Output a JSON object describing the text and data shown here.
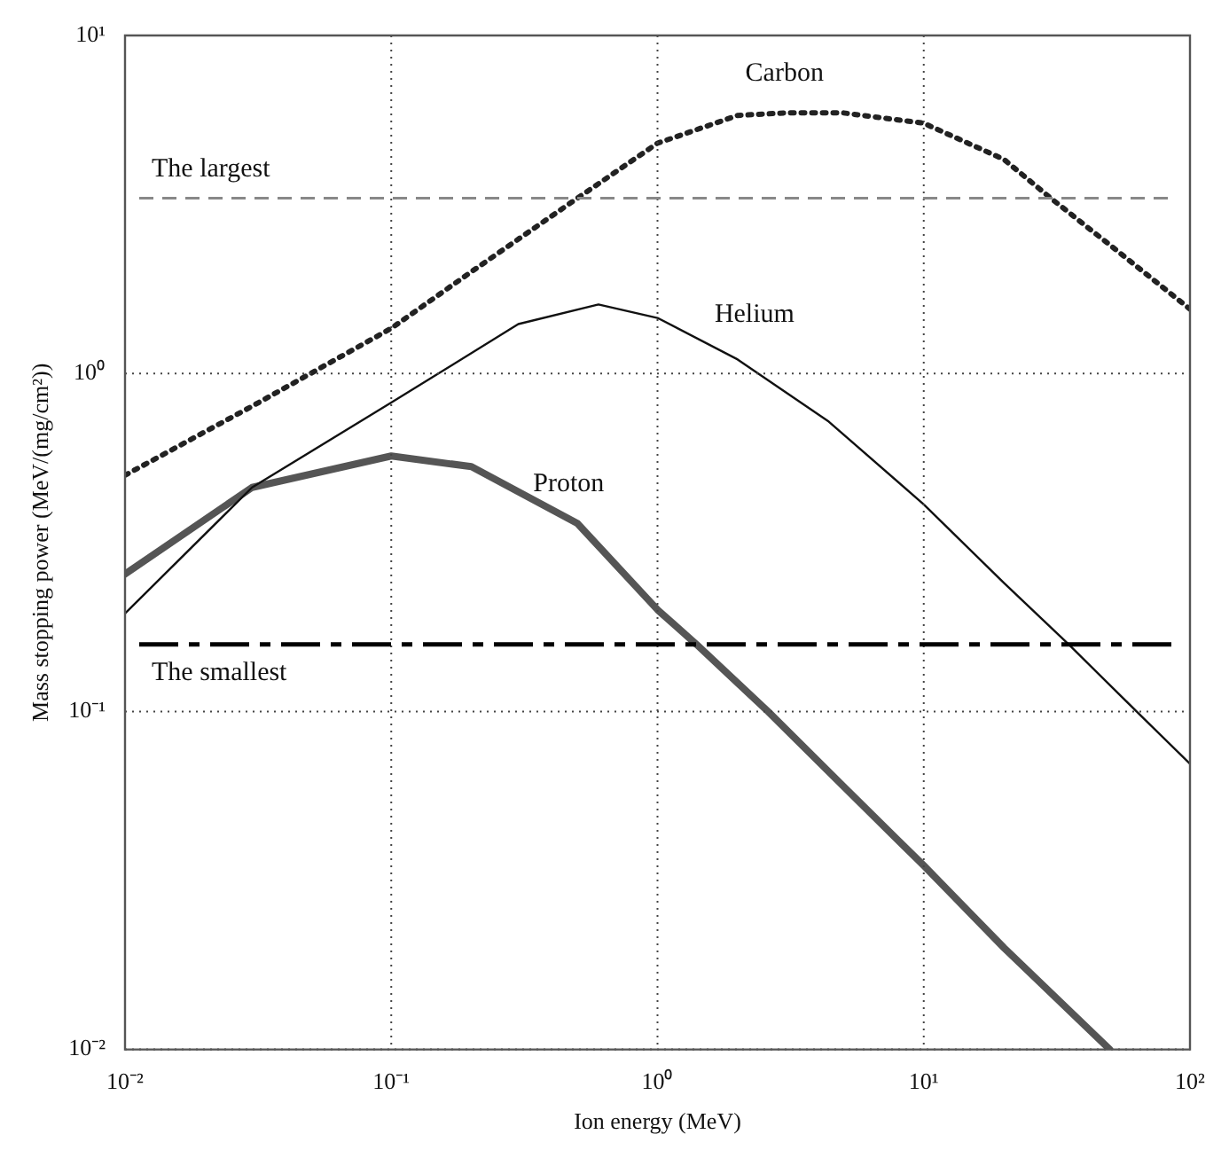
{
  "chart_data": {
    "type": "line",
    "xlabel": "Ion energy (MeV)",
    "ylabel": "Mass stopping power (MeV/(mg/cm²))",
    "log": "xy",
    "grid": true,
    "legend": false,
    "marker": "none",
    "xlim": [
      0.01,
      100
    ],
    "ylim": [
      0.01,
      10
    ],
    "xticks": [
      {
        "value": 0.01,
        "label": "10⁻²"
      },
      {
        "value": 0.1,
        "label": "10⁻¹"
      },
      {
        "value": 1,
        "label": "10⁰"
      },
      {
        "value": 10,
        "label": "10¹"
      },
      {
        "value": 100,
        "label": "10²"
      }
    ],
    "yticks": [
      {
        "value": 0.01,
        "label": "10⁻²"
      },
      {
        "value": 0.1,
        "label": "10⁻¹"
      },
      {
        "value": 1,
        "label": "10⁰"
      },
      {
        "value": 10,
        "label": "10¹"
      }
    ],
    "series": [
      {
        "name": "Carbon",
        "color": "#222222",
        "line_style": "dotted",
        "x": [
          0.01,
          0.03,
          0.1,
          0.2,
          0.5,
          1,
          2,
          3,
          5,
          10,
          20,
          30,
          50,
          100
        ],
        "values": [
          0.5,
          0.8,
          1.36,
          2.0,
          3.3,
          4.8,
          5.8,
          5.9,
          5.9,
          5.5,
          4.3,
          3.3,
          2.4,
          1.55
        ]
      },
      {
        "name": "Helium",
        "color": "#111111",
        "line_style": "solid",
        "x": [
          0.01,
          0.03,
          0.1,
          0.3,
          0.6,
          1,
          2,
          4.4,
          10,
          20,
          35,
          63,
          100
        ],
        "values": [
          0.195,
          0.46,
          0.82,
          1.4,
          1.6,
          1.46,
          1.1,
          0.72,
          0.41,
          0.24,
          0.158,
          0.1,
          0.07
        ]
      },
      {
        "name": "Proton",
        "color": "#555555",
        "line_style": "solid",
        "x": [
          0.01,
          0.03,
          0.1,
          0.2,
          0.5,
          1,
          1.4,
          2.6,
          5,
          10,
          20,
          50
        ],
        "values": [
          0.255,
          0.46,
          0.57,
          0.53,
          0.36,
          0.2,
          0.158,
          0.1,
          0.06,
          0.035,
          0.02,
          0.01
        ]
      }
    ],
    "ref_lines": [
      {
        "axis": "y",
        "value": 3.3,
        "label": "The largest",
        "color": "#888888",
        "line_style": "dashed"
      },
      {
        "axis": "y",
        "value": 0.158,
        "label": "The smallest",
        "color": "#000000",
        "line_style": "dashed"
      }
    ]
  }
}
